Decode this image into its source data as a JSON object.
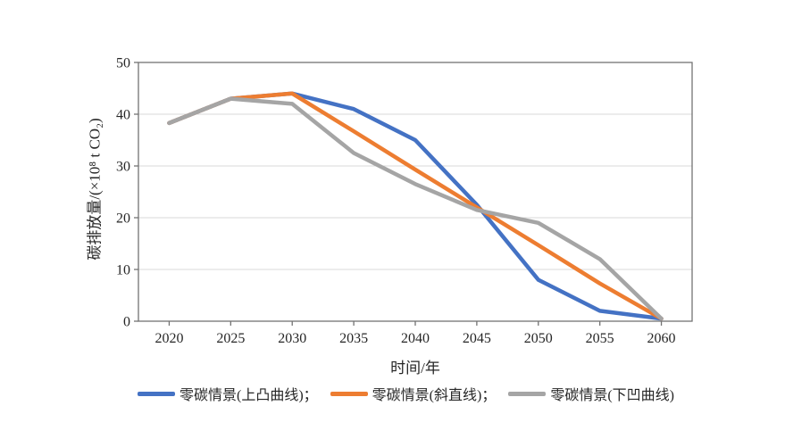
{
  "chart_data": {
    "type": "line",
    "title": "",
    "xlabel": "时间/年",
    "ylabel": "碳排放量/(×10⁸ t CO₂)",
    "categories": [
      "2020",
      "2025",
      "2030",
      "2035",
      "2040",
      "2045",
      "2050",
      "2055",
      "2060"
    ],
    "ylim": [
      0,
      50
    ],
    "yticks": [
      0,
      10,
      20,
      30,
      40,
      50
    ],
    "grid": "horizontal-only",
    "legend_position": "bottom",
    "legend_labels": [
      "零碳情景(上凸曲线)；",
      "零碳情景(斜直线)；",
      "零碳情景(下凹曲线)"
    ],
    "series": [
      {
        "name": "零碳情景(上凸曲线)",
        "color": "#4472C4",
        "values": [
          38.3,
          43,
          44,
          41,
          35,
          22.5,
          8,
          2,
          0.5
        ]
      },
      {
        "name": "零碳情景(斜直线)",
        "color": "#ED7D31",
        "values": [
          38.3,
          43,
          44,
          36.7,
          29.3,
          22,
          14.7,
          7.3,
          0.5
        ]
      },
      {
        "name": "零碳情景(下凹曲线)",
        "color": "#A5A5A5",
        "values": [
          38.3,
          43,
          42,
          32.5,
          26.5,
          21.5,
          19,
          12,
          0.5
        ]
      }
    ],
    "axis_color": "#737373",
    "gridline_color": "#d9d9d9",
    "text_color": "#262626"
  }
}
